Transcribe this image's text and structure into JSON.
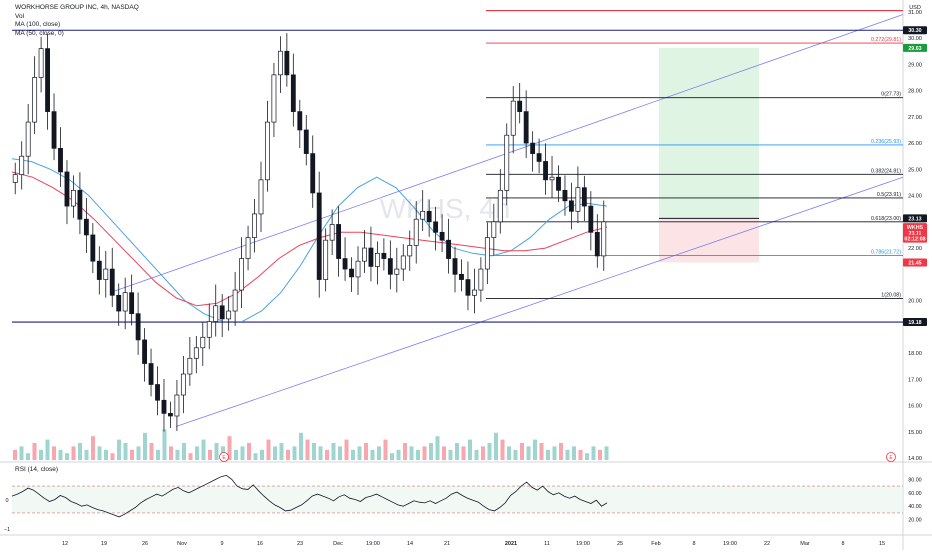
{
  "header": {
    "symbol_line": "WORKHORSE GROUP INC, 4h, NASDAQ",
    "indicators": [
      "Vol",
      "MA (100, close)",
      "MA (50, close, 0)"
    ]
  },
  "watermark": "WKHS, 4h",
  "currency": "USD",
  "price_axis": {
    "ticks": [
      "31.00",
      "30.00",
      "29.00",
      "28.00",
      "27.00",
      "26.00",
      "25.00",
      "24.00",
      "22.00",
      "20.00",
      "18.00",
      "17.00",
      "16.00",
      "15.00",
      "14.00"
    ],
    "badges": [
      {
        "label": "30.30",
        "value": 30.3,
        "color": "#131722"
      },
      {
        "label": "29.63",
        "value": 29.63,
        "color": "#1a9c3e"
      },
      {
        "label": "23.13",
        "value": 23.13,
        "color": "#131722"
      },
      {
        "label": "WKHS",
        "value": 22.8,
        "color": "#f23645"
      },
      {
        "label": "23.11",
        "value": 22.58,
        "color": "#f23645"
      },
      {
        "label": "02:12:08",
        "value": 22.36,
        "color": "#f23645"
      },
      {
        "label": "21.45",
        "value": 21.45,
        "color": "#f23645"
      },
      {
        "label": "19.18",
        "value": 19.18,
        "color": "#131722"
      }
    ]
  },
  "fib_levels": [
    {
      "label": "0.272(29.81)",
      "value": 29.81,
      "color": "#f23645"
    },
    {
      "label": "0(27.73)",
      "value": 27.73,
      "color": "#131722"
    },
    {
      "label": "0.236(25.93)",
      "value": 25.93,
      "color": "#2196f3"
    },
    {
      "label": "0.382(24.81)",
      "value": 24.81,
      "color": "#131722"
    },
    {
      "label": "0.5(23.91)",
      "value": 23.91,
      "color": "#131722"
    },
    {
      "label": "0.618(23.00)",
      "value": 23.0,
      "color": "#131722"
    },
    {
      "label": "0.786(21.72)",
      "value": 21.72,
      "color": "#2196f3"
    },
    {
      "label": "1(20.08)",
      "value": 20.08,
      "color": "#131722"
    }
  ],
  "horizontal_lines": [
    {
      "value": 30.3,
      "color": "#1f1f7a"
    },
    {
      "value": 19.18,
      "color": "#1f1f7a"
    },
    {
      "value": 31.05,
      "color": "#f23645"
    }
  ],
  "time_axis": [
    "12",
    "19",
    "26",
    "Nov",
    "9",
    "16",
    "23",
    "Dec",
    "19:00",
    "14",
    "21",
    "2021",
    "11",
    "19:00",
    "25",
    "Feb",
    "8",
    "19:00",
    "22",
    "Mar",
    "8",
    "15"
  ],
  "rsi": {
    "label": "RSI (14, close)",
    "ticks": [
      "80.00",
      "60.00",
      "40.00",
      "20.00"
    ],
    "upper": 70,
    "lower": 30,
    "left_ticks": [
      "0",
      "−1"
    ],
    "values": [
      55,
      58,
      62,
      67,
      64,
      58,
      52,
      47,
      50,
      56,
      53,
      47,
      44,
      40,
      42,
      38,
      35,
      33,
      30,
      27,
      24,
      28,
      33,
      38,
      45,
      50,
      54,
      58,
      55,
      60,
      65,
      68,
      63,
      60,
      64,
      68,
      72,
      76,
      80,
      84,
      86,
      80,
      70,
      66,
      65,
      72,
      63,
      55,
      48,
      42,
      38,
      33,
      34,
      38,
      42,
      48,
      55,
      58,
      55,
      52,
      48,
      54,
      57,
      52,
      50,
      47,
      53,
      55,
      58,
      54,
      50,
      46,
      42,
      40,
      44,
      48,
      46,
      45,
      48,
      44,
      48,
      52,
      58,
      61,
      56,
      52,
      49,
      46,
      40,
      35,
      33,
      38,
      45,
      56,
      62,
      70,
      76,
      68,
      64,
      70,
      62,
      57,
      60,
      55,
      52,
      55,
      50,
      47,
      44,
      49,
      40,
      45
    ]
  },
  "chart_data": {
    "type": "line",
    "title": "WORKHORSE GROUP INC, 4h, NASDAQ",
    "xlabel": "",
    "ylabel": "",
    "ylim": [
      14.0,
      31.3
    ],
    "x_ticks": [
      "12",
      "19",
      "26",
      "Nov",
      "9",
      "16",
      "23",
      "Dec",
      "19:00",
      "14",
      "21",
      "2021",
      "11",
      "19:00",
      "25",
      "Feb",
      "8",
      "19:00",
      "22",
      "Mar",
      "8",
      "15"
    ],
    "series": [
      {
        "name": "WKHS",
        "values": [
          24.8,
          25.5,
          26.8,
          28.5,
          29.6,
          27.2,
          25.8,
          24.9,
          23.6,
          24.2,
          23.1,
          22.5,
          21.5,
          20.8,
          21.2,
          20.2,
          19.6,
          20.3,
          19.5,
          18.5,
          17.6,
          16.8,
          16.2,
          15.7,
          15.6,
          16.4,
          17.2,
          17.8,
          18.2,
          18.6,
          19.2,
          19.8,
          19.3,
          19.6,
          20.4,
          21.6,
          22.4,
          23.3,
          24.6,
          26.8,
          28.6,
          29.5,
          28.6,
          27.2,
          26.5,
          25.6,
          24.1,
          20.8,
          22.3,
          22.9,
          21.6,
          21.2,
          20.9,
          21.5,
          22.0,
          21.3,
          21.8,
          21.6,
          21.0,
          21.2,
          21.7,
          22.1,
          23.1,
          23.4,
          23.0,
          22.6,
          22.3,
          21.6,
          21.0,
          20.8,
          20.2,
          20.4,
          21.2,
          22.4,
          23.0,
          24.2,
          26.3,
          27.6,
          27.2,
          26.0,
          25.6,
          25.3,
          24.6,
          24.7,
          24.2,
          23.8,
          23.4,
          24.3,
          23.6,
          22.6,
          21.7,
          23.0
        ]
      },
      {
        "name": "MA (50, close, 0)",
        "values": [
          25.4,
          25.3,
          25.0,
          24.6,
          24.0,
          23.2,
          22.4,
          21.6,
          20.8,
          20.0,
          19.5,
          19.2,
          19.2,
          19.6,
          20.3,
          21.3,
          22.5,
          23.6,
          24.3,
          24.7,
          24.3,
          23.5,
          22.6,
          22.0,
          21.8,
          21.7,
          21.9,
          22.4,
          23.1,
          23.6,
          23.7,
          23.6
        ]
      },
      {
        "name": "MA (100, close)",
        "values": [
          24.9,
          24.7,
          24.3,
          23.8,
          23.1,
          22.3,
          21.5,
          20.7,
          20.1,
          19.8,
          19.9,
          20.3,
          20.9,
          21.6,
          22.1,
          22.4,
          22.6,
          22.6,
          22.5,
          22.4,
          22.3,
          22.2,
          22.1,
          22.0,
          21.9,
          21.9,
          22.0,
          22.3,
          22.6,
          22.8
        ]
      }
    ],
    "volume": [
      3,
      4,
      2,
      5,
      3,
      6,
      4,
      3,
      2,
      4,
      5,
      3,
      7,
      4,
      3,
      2,
      6,
      5,
      3,
      4,
      8,
      5,
      3,
      9,
      4,
      3,
      5,
      2,
      4,
      6,
      3,
      5,
      4,
      7,
      3,
      4,
      5,
      2,
      3,
      6,
      4,
      5,
      3,
      4,
      8,
      6,
      5,
      4,
      3,
      5,
      4,
      6,
      3,
      4,
      5,
      3,
      4,
      6,
      2,
      3,
      5,
      4,
      3,
      4,
      5,
      7,
      4,
      3,
      5,
      4,
      6,
      3,
      4,
      5,
      8,
      6,
      4,
      3,
      5,
      4,
      6,
      5,
      3,
      4,
      5,
      3,
      4,
      3,
      2,
      4,
      3,
      4
    ]
  }
}
